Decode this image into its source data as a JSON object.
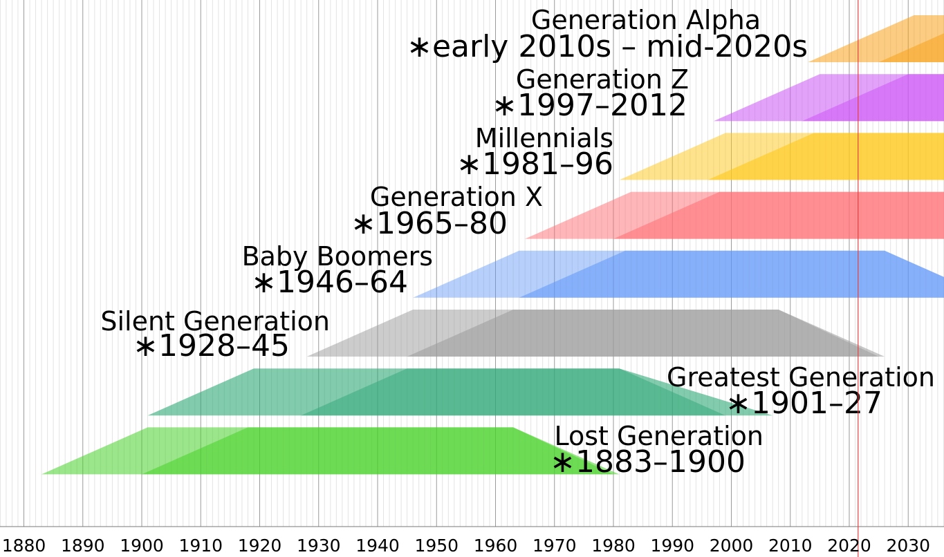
{
  "chart_data": {
    "type": "timeline",
    "x_axis": {
      "min": 1876,
      "max": 2036,
      "tick_labels": [
        "1880",
        "1890",
        "1900",
        "1910",
        "1920",
        "1930",
        "1940",
        "1950",
        "1960",
        "1970",
        "1980",
        "1990",
        "2000",
        "2010",
        "2020",
        "2030"
      ],
      "tick_values": [
        1880,
        1890,
        1900,
        1910,
        1920,
        1930,
        1940,
        1950,
        1960,
        1970,
        1980,
        1990,
        2000,
        2010,
        2020,
        2030
      ],
      "minor_grid_step_years": 1,
      "major_grid_step_years": 10
    },
    "reference_line": {
      "year": 2021.5,
      "color": "#e04040"
    },
    "generations": [
      {
        "name": "Generation Alpha",
        "years_text": "∗early 2010s – mid-2020s",
        "birth_start": 2013,
        "birth_end": 2025,
        "color": "#f7a21b",
        "light_alpha": 0.55,
        "dark_alpha": 0.85
      },
      {
        "name": "Generation Z",
        "years_text": "∗1997–2012",
        "birth_start": 1997,
        "birth_end": 2012,
        "color": "#cc55f5",
        "light_alpha": 0.55,
        "dark_alpha": 0.85
      },
      {
        "name": "Millennials",
        "years_text": "∗1981–96",
        "birth_start": 1981,
        "birth_end": 1996,
        "color": "#ffc81a",
        "light_alpha": 0.5,
        "dark_alpha": 0.85
      },
      {
        "name": "Generation X",
        "years_text": "∗1965–80",
        "birth_start": 1965,
        "birth_end": 1980,
        "color": "#ff6e72",
        "light_alpha": 0.5,
        "dark_alpha": 0.8
      },
      {
        "name": "Baby Boomers",
        "years_text": "∗1946–64",
        "birth_start": 1946,
        "birth_end": 1964,
        "color": "#5f96f7",
        "light_alpha": 0.45,
        "dark_alpha": 0.75
      },
      {
        "name": "Silent Generation",
        "years_text": "∗1928–45",
        "birth_start": 1928,
        "birth_end": 1945,
        "color": "#9a9a9a",
        "light_alpha": 0.5,
        "dark_alpha": 0.8
      },
      {
        "name": "Greatest Generation",
        "years_text": "∗1901–27",
        "birth_start": 1901,
        "birth_end": 1927,
        "color": "#2fa877",
        "light_alpha": 0.6,
        "dark_alpha": 0.85
      },
      {
        "name": "Lost Generation",
        "years_text": "∗1883–1900",
        "birth_start": 1883,
        "birth_end": 1900,
        "color": "#48d22a",
        "light_alpha": 0.55,
        "dark_alpha": 0.85
      }
    ]
  }
}
